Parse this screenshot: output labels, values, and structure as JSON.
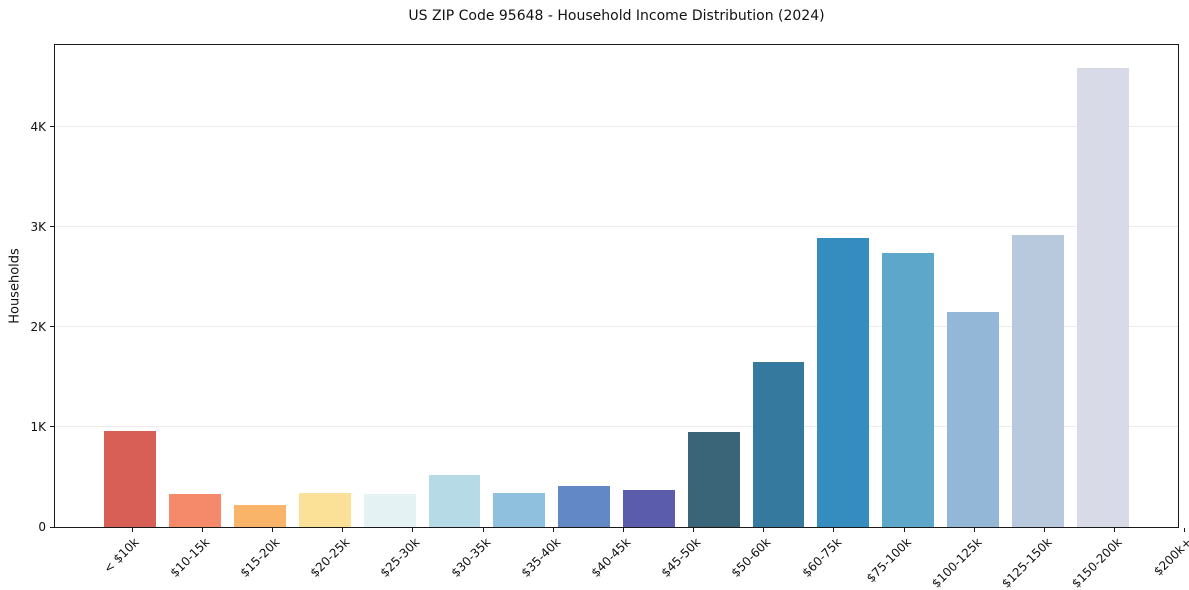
{
  "title": "US ZIP Code 95648 - Household Income Distribution (2024)",
  "chart_data": {
    "type": "bar",
    "title": "US ZIP Code 95648 - Household Income Distribution (2024)",
    "xlabel": "",
    "ylabel": "Households",
    "categories": [
      "< $10k",
      "$10-15k",
      "$15-20k",
      "$20-25k",
      "$25-30k",
      "$30-35k",
      "$35-40k",
      "$40-45k",
      "$45-50k",
      "$50-60k",
      "$60-75k",
      "$75-100k",
      "$100-125k",
      "$125-150k",
      "$150-200k",
      "$200k+"
    ],
    "values": [
      960,
      330,
      220,
      340,
      330,
      520,
      340,
      410,
      370,
      950,
      1650,
      2890,
      2740,
      2150,
      2920,
      4590
    ],
    "bar_colors": [
      "#d85f55",
      "#f48a6a",
      "#f9b469",
      "#fbe097",
      "#e5f2f4",
      "#b6dbe7",
      "#8fc0dd",
      "#6289c5",
      "#5c5cac",
      "#3a6478",
      "#35799f",
      "#348cbf",
      "#5ca7ca",
      "#93b7d7",
      "#b8c8dd",
      "#d8dbe7"
    ],
    "yticks": [
      {
        "value": 0,
        "label": "0"
      },
      {
        "value": 1000,
        "label": "1K"
      },
      {
        "value": 2000,
        "label": "2K"
      },
      {
        "value": 3000,
        "label": "3K"
      },
      {
        "value": 4000,
        "label": "4K"
      }
    ],
    "ylim": [
      0,
      4815
    ],
    "grid": "horizontal",
    "gridline_color": "#ebebeb",
    "axis_color": "#1a1a1a",
    "legend": "none",
    "x_tick_label_rotation_deg": 45
  }
}
